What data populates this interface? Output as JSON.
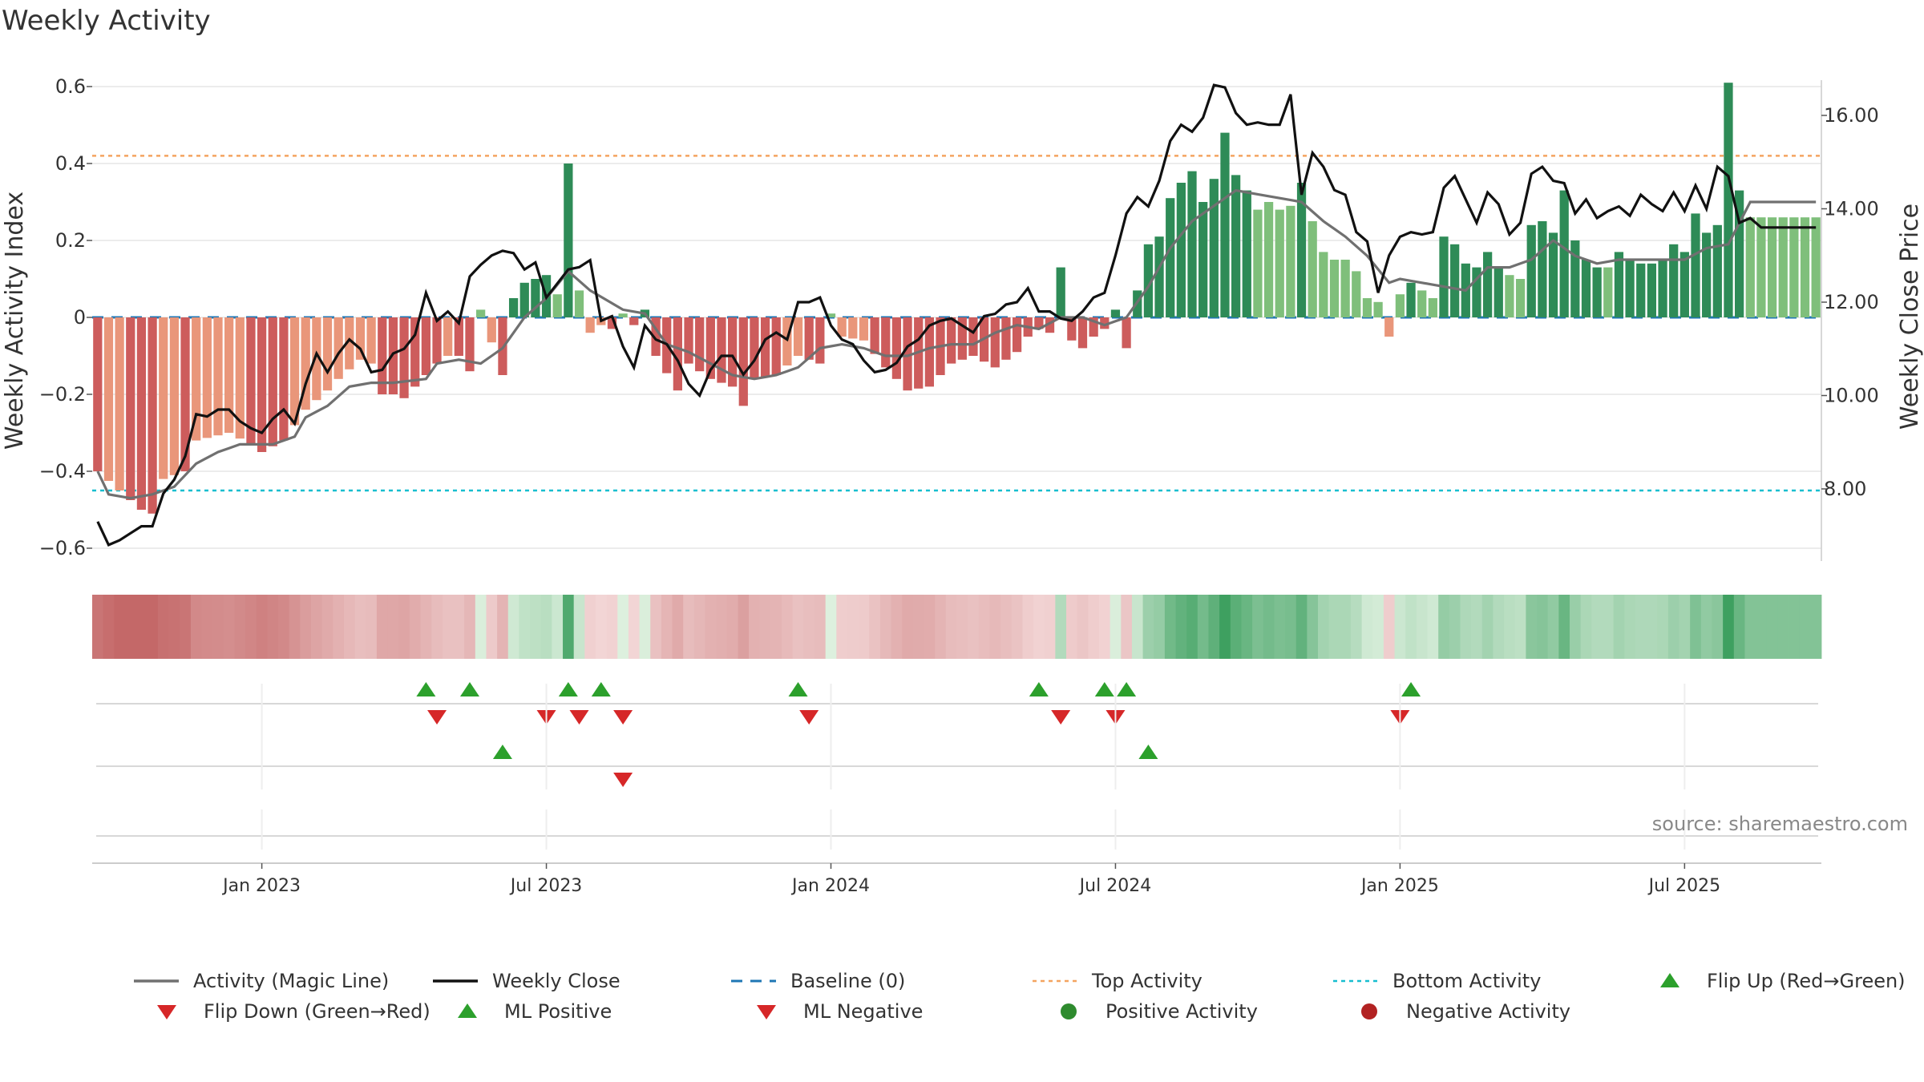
{
  "title": "Weekly Activity",
  "source_text": "source: sharemaestro.com",
  "colors": {
    "bar_pos_strong": "#2e8b57",
    "bar_pos_light": "#7fbf7b",
    "bar_neg_strong": "#cd5c5c",
    "bar_neg_light": "#e9967a",
    "magic_line": "#707070",
    "close_line": "#111111",
    "baseline": "#1f77b4",
    "top_activity": "#f4a460",
    "bottom_activity": "#17becf",
    "flip_up": "#2ca02c",
    "flip_down": "#d62728"
  },
  "chart_data": {
    "type": "bar+line",
    "title": "Weekly Activity",
    "ylabel_left": "Weekly Activity Index",
    "ylabel_right": "Weekly Close Price",
    "y_left_ticks": [
      "0.6",
      "0.4",
      "0.2",
      "0",
      "−0.2",
      "−0.4",
      "−0.6"
    ],
    "y_left_tick_values": [
      0.6,
      0.4,
      0.2,
      0,
      -0.2,
      -0.4,
      -0.6
    ],
    "ylim_left": [
      -0.65,
      0.6
    ],
    "y_right_ticks": [
      "16.00",
      "14.00",
      "12.00",
      "10.00",
      "8.00"
    ],
    "y_right_tick_values": [
      16,
      14,
      12,
      10,
      8
    ],
    "ylim_right": [
      6.6,
      17.0
    ],
    "x_ticks": [
      "Jan 2023",
      "Jul 2023",
      "Jan 2024",
      "Jul 2024",
      "Jan 2025",
      "Jul 2025"
    ],
    "x_tick_week_index": [
      15.5,
      41.5,
      67.5,
      93.5,
      119.5,
      145.5
    ],
    "week_count": 158,
    "top_activity": 0.42,
    "bottom_activity": -0.45,
    "baseline": 0,
    "activity_anchors": [
      [
        0,
        -0.4
      ],
      [
        2,
        -0.45
      ],
      [
        4,
        -0.5
      ],
      [
        5,
        -0.51
      ],
      [
        6,
        -0.42
      ],
      [
        8,
        -0.4
      ],
      [
        9,
        -0.32
      ],
      [
        12,
        -0.3
      ],
      [
        14,
        -0.33
      ],
      [
        15,
        -0.35
      ],
      [
        17,
        -0.32
      ],
      [
        18,
        -0.28
      ],
      [
        19,
        -0.24
      ],
      [
        21,
        -0.19
      ],
      [
        22,
        -0.16
      ],
      [
        24,
        -0.11
      ],
      [
        25,
        -0.12
      ],
      [
        26,
        -0.2
      ],
      [
        27,
        -0.2
      ],
      [
        28,
        -0.21
      ],
      [
        29,
        -0.18
      ],
      [
        30,
        -0.15
      ],
      [
        31,
        -0.12
      ],
      [
        32,
        -0.1
      ],
      [
        33,
        -0.1
      ],
      [
        34,
        -0.14
      ],
      [
        35,
        0.02
      ],
      [
        37,
        -0.15
      ],
      [
        38,
        0.05
      ],
      [
        39,
        0.09
      ],
      [
        41,
        0.11
      ],
      [
        42,
        0.06
      ],
      [
        43,
        0.4
      ],
      [
        44,
        0.07
      ],
      [
        45,
        -0.04
      ],
      [
        46,
        -0.02
      ],
      [
        47,
        -0.03
      ],
      [
        48,
        0.01
      ],
      [
        49,
        -0.02
      ],
      [
        50,
        0.02
      ],
      [
        51,
        -0.1
      ],
      [
        53,
        -0.19
      ],
      [
        54,
        -0.12
      ],
      [
        56,
        -0.16
      ],
      [
        58,
        -0.18
      ],
      [
        59,
        -0.23
      ],
      [
        60,
        -0.16
      ],
      [
        62,
        -0.15
      ],
      [
        64,
        -0.1
      ],
      [
        66,
        -0.12
      ],
      [
        67,
        0.01
      ],
      [
        68,
        -0.05
      ],
      [
        70,
        -0.06
      ],
      [
        72,
        -0.13
      ],
      [
        74,
        -0.19
      ],
      [
        76,
        -0.18
      ],
      [
        78,
        -0.12
      ],
      [
        80,
        -0.1
      ],
      [
        82,
        -0.13
      ],
      [
        84,
        -0.09
      ],
      [
        85,
        -0.05
      ],
      [
        86,
        -0.03
      ],
      [
        87,
        -0.04
      ],
      [
        88,
        0.13
      ],
      [
        89,
        -0.06
      ],
      [
        90,
        -0.08
      ],
      [
        91,
        -0.05
      ],
      [
        92,
        -0.03
      ],
      [
        93,
        0.02
      ],
      [
        94,
        -0.08
      ],
      [
        95,
        0.07
      ],
      [
        96,
        0.19
      ],
      [
        97,
        0.21
      ],
      [
        98,
        0.31
      ],
      [
        99,
        0.35
      ],
      [
        100,
        0.38
      ],
      [
        101,
        0.3
      ],
      [
        102,
        0.36
      ],
      [
        103,
        0.48
      ],
      [
        104,
        0.37
      ],
      [
        105,
        0.33
      ],
      [
        106,
        0.28
      ],
      [
        107,
        0.3
      ],
      [
        108,
        0.28
      ],
      [
        109,
        0.29
      ],
      [
        110,
        0.35
      ],
      [
        111,
        0.25
      ],
      [
        112,
        0.17
      ],
      [
        113,
        0.15
      ],
      [
        114,
        0.15
      ],
      [
        115,
        0.12
      ],
      [
        116,
        0.05
      ],
      [
        117,
        0.04
      ],
      [
        118,
        -0.05
      ],
      [
        119,
        0.06
      ],
      [
        120,
        0.09
      ],
      [
        121,
        0.07
      ],
      [
        122,
        0.05
      ],
      [
        123,
        0.21
      ],
      [
        124,
        0.19
      ],
      [
        125,
        0.14
      ],
      [
        126,
        0.13
      ],
      [
        127,
        0.17
      ],
      [
        128,
        0.13
      ],
      [
        129,
        0.11
      ],
      [
        130,
        0.1
      ],
      [
        131,
        0.24
      ],
      [
        132,
        0.25
      ],
      [
        133,
        0.22
      ],
      [
        134,
        0.33
      ],
      [
        135,
        0.2
      ],
      [
        136,
        0.15
      ],
      [
        137,
        0.13
      ],
      [
        138,
        0.13
      ],
      [
        139,
        0.17
      ],
      [
        140,
        0.15
      ],
      [
        141,
        0.14
      ],
      [
        142,
        0.14
      ],
      [
        143,
        0.15
      ],
      [
        144,
        0.19
      ],
      [
        145,
        0.17
      ],
      [
        146,
        0.27
      ],
      [
        147,
        0.22
      ],
      [
        148,
        0.24
      ],
      [
        149,
        0.61
      ],
      [
        150,
        0.33
      ],
      [
        151,
        0.26
      ],
      [
        157,
        0.26
      ]
    ],
    "magic_line_anchors": [
      [
        0,
        -0.4
      ],
      [
        1,
        -0.46
      ],
      [
        3,
        -0.47
      ],
      [
        5,
        -0.46
      ],
      [
        7,
        -0.44
      ],
      [
        9,
        -0.38
      ],
      [
        11,
        -0.35
      ],
      [
        13,
        -0.33
      ],
      [
        16,
        -0.33
      ],
      [
        18,
        -0.31
      ],
      [
        19,
        -0.26
      ],
      [
        21,
        -0.23
      ],
      [
        23,
        -0.18
      ],
      [
        25,
        -0.17
      ],
      [
        27,
        -0.17
      ],
      [
        30,
        -0.16
      ],
      [
        31,
        -0.12
      ],
      [
        33,
        -0.11
      ],
      [
        35,
        -0.12
      ],
      [
        37,
        -0.08
      ],
      [
        39,
        0.0
      ],
      [
        41,
        0.05
      ],
      [
        43,
        0.12
      ],
      [
        45,
        0.07
      ],
      [
        48,
        0.02
      ],
      [
        50,
        0.01
      ],
      [
        52,
        -0.07
      ],
      [
        54,
        -0.09
      ],
      [
        56,
        -0.12
      ],
      [
        58,
        -0.15
      ],
      [
        60,
        -0.16
      ],
      [
        62,
        -0.15
      ],
      [
        64,
        -0.13
      ],
      [
        66,
        -0.08
      ],
      [
        68,
        -0.07
      ],
      [
        70,
        -0.08
      ],
      [
        72,
        -0.1
      ],
      [
        74,
        -0.1
      ],
      [
        76,
        -0.08
      ],
      [
        78,
        -0.07
      ],
      [
        80,
        -0.07
      ],
      [
        82,
        -0.04
      ],
      [
        84,
        -0.02
      ],
      [
        86,
        -0.03
      ],
      [
        88,
        0.0
      ],
      [
        90,
        0.0
      ],
      [
        92,
        -0.02
      ],
      [
        94,
        0.0
      ],
      [
        96,
        0.08
      ],
      [
        98,
        0.18
      ],
      [
        100,
        0.25
      ],
      [
        102,
        0.29
      ],
      [
        104,
        0.33
      ],
      [
        106,
        0.32
      ],
      [
        108,
        0.31
      ],
      [
        110,
        0.3
      ],
      [
        112,
        0.25
      ],
      [
        114,
        0.21
      ],
      [
        116,
        0.16
      ],
      [
        118,
        0.09
      ],
      [
        119,
        0.1
      ],
      [
        121,
        0.09
      ],
      [
        123,
        0.08
      ],
      [
        125,
        0.07
      ],
      [
        127,
        0.13
      ],
      [
        129,
        0.13
      ],
      [
        131,
        0.15
      ],
      [
        133,
        0.2
      ],
      [
        135,
        0.16
      ],
      [
        137,
        0.14
      ],
      [
        139,
        0.15
      ],
      [
        141,
        0.15
      ],
      [
        143,
        0.15
      ],
      [
        145,
        0.15
      ],
      [
        147,
        0.18
      ],
      [
        149,
        0.19
      ],
      [
        151,
        0.3
      ],
      [
        157,
        0.3
      ]
    ],
    "close_anchors": [
      [
        0,
        7.3
      ],
      [
        1,
        6.8
      ],
      [
        2,
        6.9
      ],
      [
        3,
        7.05
      ],
      [
        4,
        7.2
      ],
      [
        5,
        7.2
      ],
      [
        6,
        7.9
      ],
      [
        7,
        8.2
      ],
      [
        8,
        8.7
      ],
      [
        9,
        9.6
      ],
      [
        10,
        9.55
      ],
      [
        11,
        9.7
      ],
      [
        12,
        9.7
      ],
      [
        13,
        9.45
      ],
      [
        14,
        9.3
      ],
      [
        15,
        9.2
      ],
      [
        16,
        9.5
      ],
      [
        17,
        9.7
      ],
      [
        18,
        9.4
      ],
      [
        19,
        10.25
      ],
      [
        20,
        10.9
      ],
      [
        21,
        10.5
      ],
      [
        22,
        10.9
      ],
      [
        23,
        11.2
      ],
      [
        24,
        11.0
      ],
      [
        25,
        10.5
      ],
      [
        26,
        10.55
      ],
      [
        27,
        10.9
      ],
      [
        28,
        11.0
      ],
      [
        29,
        11.3
      ],
      [
        30,
        12.2
      ],
      [
        31,
        11.6
      ],
      [
        32,
        11.8
      ],
      [
        33,
        11.55
      ],
      [
        34,
        12.55
      ],
      [
        35,
        12.8
      ],
      [
        36,
        13.0
      ],
      [
        37,
        13.1
      ],
      [
        38,
        13.05
      ],
      [
        39,
        12.7
      ],
      [
        40,
        12.85
      ],
      [
        41,
        12.1
      ],
      [
        42,
        12.4
      ],
      [
        43,
        12.7
      ],
      [
        44,
        12.75
      ],
      [
        45,
        12.9
      ],
      [
        46,
        11.6
      ],
      [
        47,
        11.7
      ],
      [
        48,
        11.05
      ],
      [
        49,
        10.6
      ],
      [
        50,
        11.5
      ],
      [
        51,
        11.2
      ],
      [
        52,
        11.1
      ],
      [
        53,
        10.75
      ],
      [
        54,
        10.25
      ],
      [
        55,
        10.0
      ],
      [
        56,
        10.55
      ],
      [
        57,
        10.85
      ],
      [
        58,
        10.85
      ],
      [
        59,
        10.45
      ],
      [
        60,
        10.75
      ],
      [
        61,
        11.2
      ],
      [
        62,
        11.35
      ],
      [
        63,
        11.2
      ],
      [
        64,
        12.0
      ],
      [
        65,
        12.0
      ],
      [
        66,
        12.1
      ],
      [
        67,
        11.5
      ],
      [
        68,
        11.2
      ],
      [
        69,
        11.1
      ],
      [
        70,
        10.75
      ],
      [
        71,
        10.5
      ],
      [
        72,
        10.55
      ],
      [
        73,
        10.7
      ],
      [
        74,
        11.05
      ],
      [
        75,
        11.2
      ],
      [
        76,
        11.5
      ],
      [
        77,
        11.6
      ],
      [
        78,
        11.65
      ],
      [
        79,
        11.5
      ],
      [
        80,
        11.35
      ],
      [
        81,
        11.7
      ],
      [
        82,
        11.75
      ],
      [
        83,
        11.95
      ],
      [
        84,
        12.0
      ],
      [
        85,
        12.3
      ],
      [
        86,
        11.8
      ],
      [
        87,
        11.8
      ],
      [
        88,
        11.65
      ],
      [
        89,
        11.6
      ],
      [
        90,
        11.8
      ],
      [
        91,
        12.1
      ],
      [
        92,
        12.2
      ],
      [
        93,
        13.0
      ],
      [
        94,
        13.9
      ],
      [
        95,
        14.25
      ],
      [
        96,
        14.05
      ],
      [
        97,
        14.6
      ],
      [
        98,
        15.45
      ],
      [
        99,
        15.8
      ],
      [
        100,
        15.65
      ],
      [
        101,
        15.95
      ],
      [
        102,
        16.65
      ],
      [
        103,
        16.6
      ],
      [
        104,
        16.05
      ],
      [
        105,
        15.8
      ],
      [
        106,
        15.85
      ],
      [
        107,
        15.8
      ],
      [
        108,
        15.8
      ],
      [
        109,
        16.45
      ],
      [
        110,
        14.3
      ],
      [
        111,
        15.2
      ],
      [
        112,
        14.9
      ],
      [
        113,
        14.4
      ],
      [
        114,
        14.3
      ],
      [
        115,
        13.5
      ],
      [
        116,
        13.3
      ],
      [
        117,
        12.2
      ],
      [
        118,
        13.0
      ],
      [
        119,
        13.4
      ],
      [
        120,
        13.5
      ],
      [
        121,
        13.45
      ],
      [
        122,
        13.5
      ],
      [
        123,
        14.45
      ],
      [
        124,
        14.7
      ],
      [
        125,
        14.2
      ],
      [
        126,
        13.7
      ],
      [
        127,
        14.35
      ],
      [
        128,
        14.1
      ],
      [
        129,
        13.45
      ],
      [
        130,
        13.7
      ],
      [
        131,
        14.75
      ],
      [
        132,
        14.9
      ],
      [
        133,
        14.6
      ],
      [
        134,
        14.55
      ],
      [
        135,
        13.9
      ],
      [
        136,
        14.2
      ],
      [
        137,
        13.8
      ],
      [
        138,
        13.95
      ],
      [
        139,
        14.05
      ],
      [
        140,
        13.85
      ],
      [
        141,
        14.3
      ],
      [
        142,
        14.1
      ],
      [
        143,
        13.95
      ],
      [
        144,
        14.35
      ],
      [
        145,
        13.95
      ],
      [
        146,
        14.5
      ],
      [
        147,
        14.0
      ],
      [
        148,
        14.9
      ],
      [
        149,
        14.7
      ],
      [
        150,
        13.7
      ],
      [
        151,
        13.8
      ],
      [
        152,
        13.6
      ],
      [
        157,
        13.6
      ]
    ],
    "flip_up_weeks": [
      30,
      34,
      43,
      46,
      64,
      86,
      92,
      94,
      120
    ],
    "flip_down_weeks": [
      31,
      41,
      44,
      48,
      65,
      88,
      93,
      119
    ],
    "ml_positive_weeks": [
      37,
      96
    ],
    "ml_negative_weeks": [
      48
    ],
    "legend": [
      {
        "label": "Activity (Magic Line)",
        "symbol": "solid-gray"
      },
      {
        "label": "Weekly Close",
        "symbol": "solid-black"
      },
      {
        "label": "Baseline (0)",
        "symbol": "dash-blue"
      },
      {
        "label": "Top Activity",
        "symbol": "dot-orange"
      },
      {
        "label": "Bottom Activity",
        "symbol": "dot-cyan"
      },
      {
        "label": "Flip Up (Red→Green)",
        "symbol": "tri-up-green"
      },
      {
        "label": "Flip Down (Green→Red)",
        "symbol": "tri-down-red"
      },
      {
        "label": "ML Positive",
        "symbol": "tri-up-green"
      },
      {
        "label": "ML Negative",
        "symbol": "tri-down-red"
      },
      {
        "label": "Positive Activity",
        "symbol": "circle-green"
      },
      {
        "label": "Negative Activity",
        "symbol": "circle-darkred"
      }
    ]
  }
}
